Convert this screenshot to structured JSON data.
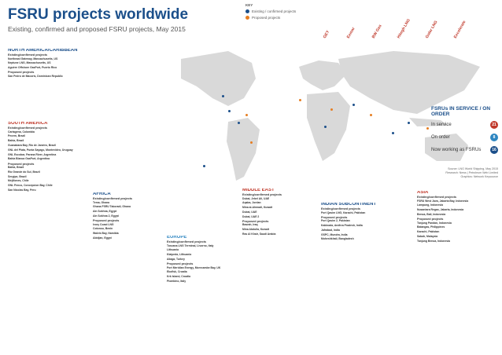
{
  "header": {
    "title": "FSRU projects worldwide",
    "subtitle": "Existing, confirmed and proposed FSRU projects, May 2015"
  },
  "key": {
    "title": "KEY",
    "items": [
      {
        "label": "Existing / confirmed projects",
        "color": "#1b4f8a"
      },
      {
        "label": "Proposed projects",
        "color": "#e67e22"
      }
    ]
  },
  "logos": [
    "GEY",
    "Höegh LNG",
    "Golar LNG",
    "Excelerate",
    "Exmar",
    "BW Gas",
    "Höegh LNG"
  ],
  "colors": {
    "ocean": "#dce8f2",
    "land": "#d9d9d9",
    "existing": "#1b4f8a",
    "proposed": "#e67e22",
    "accent": "#c0392b"
  },
  "north_america": {
    "title": "NORTH AMERICA/CARIBBEAN",
    "existing_label": "Existing/confirmed projects",
    "existing": [
      "Northeast Gateway, Massachusetts, US",
      "Neptune LNG, Massachusetts, US",
      "Aguirre Offshore GasPort, Puerto Rico"
    ],
    "proposed_label": "Proposed projects",
    "proposed": [
      "San Pedro de Macoris, Dominican Republic"
    ]
  },
  "south_america": {
    "title": "SOUTH AMERICA",
    "existing_label": "Existing/confirmed projects",
    "existing": [
      "Cartagena, Colombia",
      "Pecem, Brazil",
      "Bahia, Brazil",
      "Guanabara Bay, Rio de Janeiro, Brazil",
      "GNL del Plata, Punta Sayago, Montevideo, Uruguay",
      "GNL Escobar, Parana River, Argentina",
      "Bahia Blanca GasPort, Argentina"
    ],
    "proposed_label": "Proposed projects",
    "proposed": [
      "Bahia, Brazil",
      "Rio Grande do Sul, Brazil",
      "Sergipe, Brazil",
      "Mejillones, Chile",
      "GNL Penco, Concepcion Bay, Chile",
      "San Nicolas Bay, Peru"
    ]
  },
  "africa": {
    "title": "AFRICA",
    "existing_label": "Existing/confirmed projects",
    "existing": [
      "Tema, Ghana",
      "Ghana FSRU Takoradi, Ghana",
      "Ain Sokhna, Egypt",
      "Ain Sokhna 2, Egypt"
    ],
    "proposed_label": "Proposed projects",
    "proposed": [
      "Ivory Coast LNG",
      "Cotonou, Benin",
      "Walvis Bay, Namibia",
      "Abidjan, Egypt"
    ]
  },
  "europe": {
    "title": "EUROPE",
    "existing_label": "Existing/confirmed projects",
    "existing": [
      "Toscana LNG Terminal, Livorno, Italy",
      "Lithuania",
      "Klaipeda, Lithuania",
      "Aliaga, Turkey"
    ],
    "proposed_label": "Proposed projects",
    "proposed": [
      "Port Meridian Energy, Morecambe Bay, UK",
      "Ekofisk, Croatia",
      "Krk Island, Croatia",
      "Piombino, Italy"
    ]
  },
  "middle_east": {
    "title": "MIDDLE EAST",
    "existing_label": "Existing/confirmed projects",
    "existing": [
      "Dubai, Jebel Ali, UAE",
      "Aqaba, Jordan",
      "Mina al-Ahmadi, Kuwait",
      "Dubai, UAE",
      "Dubai, UAE 2"
    ],
    "proposed_label": "Proposed projects",
    "proposed": [
      "Basrah, Iraq",
      "Mina Abdulla, Kuwait",
      "Ras Al Khair, Saudi Arabia"
    ]
  },
  "indian_subcontinent": {
    "title": "INDIAN SUBCONTINENT",
    "existing_label": "Existing/confirmed projects",
    "existing": [
      "Port Qasim LNG, Karachi, Pakistan"
    ],
    "proposed_label": "Proposed projects",
    "proposed": [
      "Port Qasim 2, Pakistan",
      "Kakinada, Andhra Pradesh, India",
      "Jafrabad, India",
      "GSPC, Mundra, India",
      "Moheshkhali, Bangladesh"
    ]
  },
  "asia": {
    "title": "ASIA",
    "existing_label": "Existing/confirmed projects",
    "existing": [
      "FSRU West Java, Jakarta Bay, Indonesia",
      "Lampung, Indonesia",
      "Nusantara Regas, Jakarta, Indonesia",
      "Benoa, Bali, Indonesia"
    ],
    "proposed_label": "Proposed projects",
    "proposed": [
      "Tanjung Pandan, Indonesia",
      "Batangas, Philippines",
      "Karachi, Pakistan",
      "Sabah, Malaysia",
      "Tanjung Benoa, Indonesia"
    ]
  },
  "fsrus_panel": {
    "title": "FSRUs IN SERVICE / ON ORDER",
    "rows": [
      {
        "label": "In service",
        "value": "21",
        "color": "#c0392b"
      },
      {
        "label": "On order",
        "value": "8",
        "color": "#2e86c1"
      },
      {
        "label": "Now working as FSRUs",
        "value": "16",
        "color": "#1b4f8a"
      }
    ]
  },
  "source": {
    "line1": "Source: LNG World Shipping, May 2015",
    "line2": "Research: News | Petroleum Web Limited",
    "line3": "Graphics: Network Keysource"
  }
}
